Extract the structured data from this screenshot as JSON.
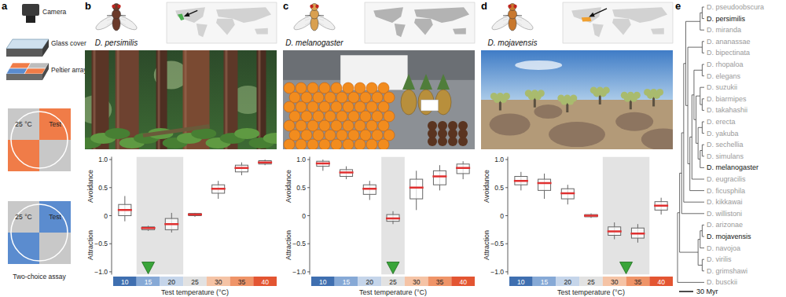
{
  "setup": {
    "label": "a",
    "camera": "Camera",
    "glass_cover": "Glass cover",
    "peltier_array": "Peltier array",
    "test": "Test",
    "reference": "25 °C",
    "assay": "Two-choice assay"
  },
  "chart_data": [
    {
      "type": "box",
      "panel": "b",
      "title": "D. persimilis",
      "x": [
        10,
        15,
        20,
        25,
        30,
        35,
        40
      ],
      "median": [
        0.1,
        -0.22,
        -0.15,
        0.02,
        0.48,
        0.85,
        0.95
      ],
      "q1": [
        0.0,
        -0.25,
        -0.25,
        0.0,
        0.4,
        0.78,
        0.92
      ],
      "q3": [
        0.2,
        -0.2,
        -0.05,
        0.04,
        0.55,
        0.9,
        0.98
      ],
      "whisker_low": [
        -0.1,
        -0.27,
        -0.3,
        -0.02,
        0.3,
        0.72,
        0.9
      ],
      "whisker_high": [
        0.35,
        -0.18,
        0.05,
        0.05,
        0.62,
        0.95,
        1.0
      ],
      "preferred_range": [
        12.5,
        22.5
      ],
      "preferred_temperature": 15,
      "xlim": [
        7.5,
        42.5
      ],
      "xticks": [
        10,
        15,
        20,
        25,
        30,
        35,
        40
      ],
      "colors": [
        "#3f6fb0",
        "#86a9d6",
        "#c5d5ea",
        "#e2e2e2",
        "#f5c3a5",
        "#ef9468",
        "#e35532"
      ],
      "ylim": [
        -1.05,
        1.05
      ],
      "yticks": [
        {
          "value": -1,
          "label": "−1.0"
        },
        {
          "value": -0.5,
          "label": "−0.5"
        },
        0,
        0.5,
        {
          "value": 1,
          "label": "1.0"
        }
      ],
      "x_label": "Test temperature (°C)",
      "y_label_upper": "Avoidance",
      "y_label_lower": "Attraction"
    },
    {
      "type": "box",
      "panel": "c",
      "title": "D. melanogaster",
      "x": [
        10,
        15,
        20,
        25,
        30,
        35,
        40
      ],
      "median": [
        0.93,
        0.77,
        0.48,
        -0.05,
        0.5,
        0.7,
        0.85
      ],
      "q1": [
        0.88,
        0.7,
        0.38,
        -0.1,
        0.3,
        0.55,
        0.75
      ],
      "q3": [
        0.97,
        0.82,
        0.55,
        0.02,
        0.65,
        0.8,
        0.92
      ],
      "whisker_low": [
        0.8,
        0.65,
        0.28,
        -0.15,
        0.1,
        0.45,
        0.65
      ],
      "whisker_high": [
        1.0,
        0.88,
        0.62,
        0.08,
        0.8,
        0.9,
        0.97
      ],
      "preferred_range": [
        22.5,
        27.5
      ],
      "preferred_temperature": 25,
      "xlim": [
        7.5,
        42.5
      ],
      "xticks": [
        10,
        15,
        20,
        25,
        30,
        35,
        40
      ],
      "colors": [
        "#3f6fb0",
        "#86a9d6",
        "#c5d5ea",
        "#e2e2e2",
        "#f5c3a5",
        "#ef9468",
        "#e35532"
      ],
      "ylim": [
        -1.05,
        1.05
      ],
      "yticks": [
        {
          "value": -1,
          "label": "−1.0"
        },
        {
          "value": -0.5,
          "label": "−0.5"
        },
        0,
        0.5,
        {
          "value": 1,
          "label": "1.0"
        }
      ],
      "x_label": "Test temperature (°C)",
      "y_label_upper": "Avoidance",
      "y_label_lower": "Attraction"
    },
    {
      "type": "box",
      "panel": "d",
      "title": "D. mojavensis",
      "x": [
        10,
        15,
        20,
        25,
        30,
        35,
        40
      ],
      "median": [
        0.62,
        0.58,
        0.4,
        0.0,
        -0.28,
        -0.32,
        0.18
      ],
      "q1": [
        0.55,
        0.45,
        0.3,
        -0.02,
        -0.35,
        -0.4,
        0.1
      ],
      "q3": [
        0.7,
        0.65,
        0.48,
        0.02,
        -0.2,
        -0.22,
        0.25
      ],
      "whisker_low": [
        0.45,
        0.3,
        0.2,
        -0.04,
        -0.42,
        -0.48,
        0.02
      ],
      "whisker_high": [
        0.78,
        0.75,
        0.55,
        0.04,
        -0.12,
        -0.15,
        0.32
      ],
      "preferred_range": [
        27.5,
        37.5
      ],
      "preferred_temperature": 32.5,
      "xlim": [
        7.5,
        42.5
      ],
      "xticks": [
        10,
        15,
        20,
        25,
        30,
        35,
        40
      ],
      "colors": [
        "#3f6fb0",
        "#86a9d6",
        "#c5d5ea",
        "#e2e2e2",
        "#f5c3a5",
        "#ef9468",
        "#e35532"
      ],
      "ylim": [
        -1.05,
        1.05
      ],
      "yticks": [
        {
          "value": -1,
          "label": "−1.0"
        },
        {
          "value": -0.5,
          "label": "−0.5"
        },
        0,
        0.5,
        {
          "value": 1,
          "label": "1.0"
        }
      ],
      "x_label": "Test temperature (°C)",
      "y_label_upper": "Avoidance",
      "y_label_lower": "Attraction"
    }
  ],
  "phylogeny": {
    "label": "e",
    "scale_bar": "30 Myr",
    "tree": [
      [
        [
          [
            [
              [
                [
                  {
                    "name": "D. pseudoobscura"
                  },
                  {
                    "name": "D. persimilis",
                    "focal": true
                  }
                ],
                {
                  "name": "D. miranda"
                }
              ],
              [
                [
                  {
                    "name": "D. ananassae"
                  },
                  {
                    "name": "D. bipectinata"
                  }
                ],
                [
                  [
                    [
                      [
                        {
                          "name": "D. rhopaloa"
                        },
                        {
                          "name": "D. elegans"
                        }
                      ],
                      [
                        [
                          {
                            "name": "D. suzukii"
                          },
                          [
                            {
                              "name": "D. biarmipes"
                            },
                            {
                              "name": "D. takahashii"
                            }
                          ]
                        ],
                        [
                          [
                            {
                              "name": "D. erecta"
                            },
                            {
                              "name": "D. yakuba"
                            }
                          ],
                          [
                            [
                              {
                                "name": "D. sechellia"
                              },
                              {
                                "name": "D. simulans"
                              }
                            ],
                            {
                              "name": "D. melanogaster",
                              "focal": true
                            }
                          ]
                        ]
                      ]
                    ],
                    {
                      "name": "D. eugracilis"
                    }
                  ],
                  {
                    "name": "D. ficusphila"
                  }
                ]
              ]
            ],
            {
              "name": "D. kikkawai"
            }
          ],
          {
            "name": "D. willistoni"
          }
        ],
        [
          [
            [
              {
                "name": "D. arizonae"
              },
              {
                "name": "D. mojavensis",
                "focal": true
              }
            ],
            {
              "name": "D. navojoa"
            }
          ],
          [
            {
              "name": "D. virilis"
            },
            {
              "name": "D. grimshawi"
            }
          ]
        ]
      ],
      {
        "name": "D. busckii"
      }
    ]
  }
}
